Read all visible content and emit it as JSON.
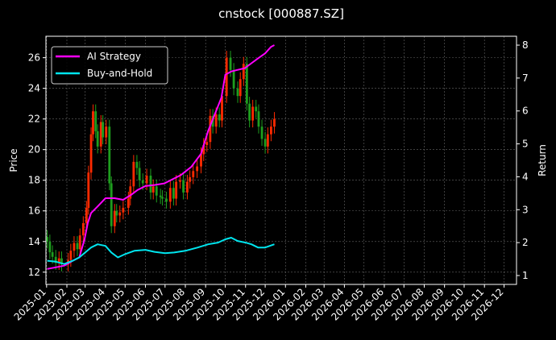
{
  "chart_data": {
    "type": "line",
    "title": "cnstock [000887.SZ]",
    "ylabel_left": "Price",
    "ylabel_right": "Return",
    "colors": {
      "background": "#000000",
      "grid": "#666666",
      "up_candle": "#ff2a00",
      "down_candle": "#1e9e1e",
      "ai_strategy": "#ff00ff",
      "buy_and_hold": "#00e5ee",
      "text": "#ffffff"
    },
    "x_tick_labels": [
      "2025-01",
      "2025-02",
      "2025-03",
      "2025-04",
      "2025-05",
      "2025-06",
      "2025-07",
      "2025-08",
      "2025-09",
      "2025-10",
      "2025-11",
      "2025-12",
      "2026-01",
      "2026-02",
      "2026-03",
      "2026-04",
      "2026-05",
      "2026-06",
      "2026-07",
      "2026-08",
      "2026-09",
      "2026-10",
      "2026-11",
      "2026-12"
    ],
    "xlim": [
      "2024-12-31",
      "2026-12-20"
    ],
    "ylim_left": [
      11.2,
      27.4
    ],
    "ylim_right": [
      0.73,
      8.27
    ],
    "y_ticks_left": [
      12,
      14,
      16,
      18,
      20,
      22,
      24,
      26
    ],
    "y_ticks_right": [
      1,
      2,
      3,
      4,
      5,
      6,
      7,
      8
    ],
    "grid": true,
    "legend": {
      "placement": "upper-left",
      "entries": [
        {
          "label": "AI Strategy",
          "color": "#ff00ff"
        },
        {
          "label": "Buy-and-Hold",
          "color": "#00e5ee"
        }
      ]
    },
    "price_candles": {
      "closes": [
        [
          "2025-01-02",
          14.0
        ],
        [
          "2025-01-06",
          13.3
        ],
        [
          "2025-01-10",
          13.0
        ],
        [
          "2025-01-15",
          12.6
        ],
        [
          "2025-01-20",
          12.9
        ],
        [
          "2025-01-24",
          12.5
        ],
        [
          "2025-02-03",
          12.8
        ],
        [
          "2025-02-07",
          13.4
        ],
        [
          "2025-02-12",
          13.9
        ],
        [
          "2025-02-17",
          13.5
        ],
        [
          "2025-02-21",
          14.4
        ],
        [
          "2025-02-26",
          15.2
        ],
        [
          "2025-03-03",
          16.2
        ],
        [
          "2025-03-06",
          18.5
        ],
        [
          "2025-03-10",
          21.0
        ],
        [
          "2025-03-13",
          22.5
        ],
        [
          "2025-03-17",
          21.2
        ],
        [
          "2025-03-20",
          20.2
        ],
        [
          "2025-03-25",
          21.8
        ],
        [
          "2025-03-28",
          20.8
        ],
        [
          "2025-04-02",
          21.5
        ],
        [
          "2025-04-07",
          17.8
        ],
        [
          "2025-04-10",
          15.0
        ],
        [
          "2025-04-15",
          16.0
        ],
        [
          "2025-04-18",
          15.7
        ],
        [
          "2025-04-23",
          15.9
        ],
        [
          "2025-04-28",
          16.2
        ],
        [
          "2025-05-06",
          16.8
        ],
        [
          "2025-05-09",
          17.6
        ],
        [
          "2025-05-14",
          19.2
        ],
        [
          "2025-05-19",
          18.8
        ],
        [
          "2025-05-23",
          18.0
        ],
        [
          "2025-05-28",
          17.8
        ],
        [
          "2025-06-03",
          18.3
        ],
        [
          "2025-06-09",
          17.2
        ],
        [
          "2025-06-13",
          17.6
        ],
        [
          "2025-06-18",
          17.0
        ],
        [
          "2025-06-24",
          16.9
        ],
        [
          "2025-06-27",
          16.8
        ],
        [
          "2025-07-03",
          16.6
        ],
        [
          "2025-07-09",
          17.5
        ],
        [
          "2025-07-14",
          16.8
        ],
        [
          "2025-07-18",
          17.9
        ],
        [
          "2025-07-24",
          18.0
        ],
        [
          "2025-07-29",
          17.2
        ],
        [
          "2025-08-04",
          17.9
        ],
        [
          "2025-08-08",
          18.2
        ],
        [
          "2025-08-13",
          18.6
        ],
        [
          "2025-08-19",
          18.9
        ],
        [
          "2025-08-25",
          19.7
        ],
        [
          "2025-08-29",
          20.3
        ],
        [
          "2025-09-03",
          20.5
        ],
        [
          "2025-09-08",
          22.2
        ],
        [
          "2025-09-12",
          21.5
        ],
        [
          "2025-09-17",
          22.3
        ],
        [
          "2025-09-22",
          21.9
        ],
        [
          "2025-09-26",
          23.5
        ],
        [
          "2025-10-03",
          26.0
        ],
        [
          "2025-10-09",
          25.2
        ],
        [
          "2025-10-14",
          24.0
        ],
        [
          "2025-10-20",
          23.5
        ],
        [
          "2025-10-24",
          24.6
        ],
        [
          "2025-10-29",
          25.6
        ],
        [
          "2025-11-03",
          23.0
        ],
        [
          "2025-11-07",
          21.9
        ],
        [
          "2025-11-12",
          22.8
        ],
        [
          "2025-11-17",
          22.5
        ],
        [
          "2025-11-21",
          21.5
        ],
        [
          "2025-11-26",
          20.7
        ],
        [
          "2025-12-01",
          20.2
        ],
        [
          "2025-12-05",
          21.0
        ],
        [
          "2025-12-10",
          21.5
        ],
        [
          "2025-12-15",
          22.0
        ]
      ]
    },
    "series": [
      {
        "name": "AI Strategy",
        "axis": "right",
        "points": [
          [
            "2025-01-02",
            1.2
          ],
          [
            "2025-01-15",
            1.25
          ],
          [
            "2025-01-28",
            1.3
          ],
          [
            "2025-02-10",
            1.45
          ],
          [
            "2025-02-20",
            1.55
          ],
          [
            "2025-02-28",
            2.1
          ],
          [
            "2025-03-05",
            2.6
          ],
          [
            "2025-03-10",
            2.9
          ],
          [
            "2025-03-20",
            3.1
          ],
          [
            "2025-04-01",
            3.35
          ],
          [
            "2025-04-15",
            3.35
          ],
          [
            "2025-04-28",
            3.3
          ],
          [
            "2025-05-10",
            3.45
          ],
          [
            "2025-05-20",
            3.6
          ],
          [
            "2025-06-01",
            3.72
          ],
          [
            "2025-06-15",
            3.75
          ],
          [
            "2025-06-30",
            3.8
          ],
          [
            "2025-07-10",
            3.9
          ],
          [
            "2025-07-25",
            4.05
          ],
          [
            "2025-08-10",
            4.3
          ],
          [
            "2025-08-25",
            4.7
          ],
          [
            "2025-09-05",
            5.4
          ],
          [
            "2025-09-15",
            5.9
          ],
          [
            "2025-09-25",
            6.4
          ],
          [
            "2025-10-01",
            7.1
          ],
          [
            "2025-10-10",
            7.2
          ],
          [
            "2025-10-20",
            7.25
          ],
          [
            "2025-10-31",
            7.3
          ],
          [
            "2025-11-10",
            7.45
          ],
          [
            "2025-11-20",
            7.6
          ],
          [
            "2025-12-01",
            7.75
          ],
          [
            "2025-12-10",
            7.95
          ],
          [
            "2025-12-15",
            8.0
          ]
        ]
      },
      {
        "name": "Buy-and-Hold",
        "axis": "right",
        "points": [
          [
            "2025-01-02",
            1.45
          ],
          [
            "2025-01-15",
            1.42
          ],
          [
            "2025-01-28",
            1.35
          ],
          [
            "2025-02-10",
            1.45
          ],
          [
            "2025-02-20",
            1.55
          ],
          [
            "2025-03-01",
            1.7
          ],
          [
            "2025-03-10",
            1.85
          ],
          [
            "2025-03-20",
            1.95
          ],
          [
            "2025-04-01",
            1.9
          ],
          [
            "2025-04-10",
            1.7
          ],
          [
            "2025-04-20",
            1.55
          ],
          [
            "2025-05-01",
            1.65
          ],
          [
            "2025-05-15",
            1.75
          ],
          [
            "2025-06-01",
            1.78
          ],
          [
            "2025-06-15",
            1.72
          ],
          [
            "2025-07-01",
            1.68
          ],
          [
            "2025-07-15",
            1.7
          ],
          [
            "2025-08-01",
            1.75
          ],
          [
            "2025-08-20",
            1.85
          ],
          [
            "2025-09-05",
            1.95
          ],
          [
            "2025-09-20",
            2.0
          ],
          [
            "2025-10-01",
            2.1
          ],
          [
            "2025-10-10",
            2.15
          ],
          [
            "2025-10-20",
            2.05
          ],
          [
            "2025-11-01",
            2.0
          ],
          [
            "2025-11-10",
            1.95
          ],
          [
            "2025-11-20",
            1.85
          ],
          [
            "2025-12-01",
            1.85
          ],
          [
            "2025-12-15",
            1.95
          ]
        ]
      }
    ]
  }
}
